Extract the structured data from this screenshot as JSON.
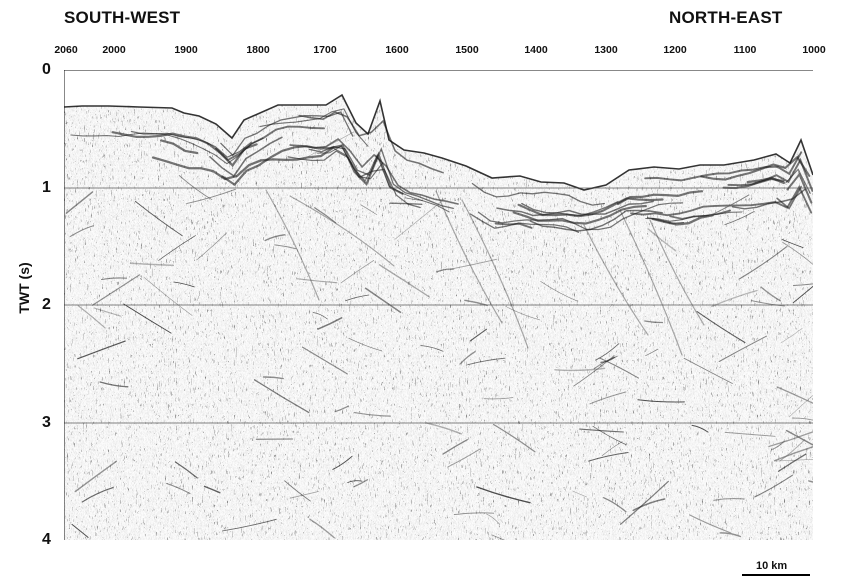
{
  "title": {
    "left_direction": "SOUTH-WEST",
    "right_direction": "NORTH-EAST"
  },
  "top_axis": {
    "labels": [
      "2060",
      "2000",
      "1900",
      "1800",
      "1700",
      "1600",
      "1500",
      "1400",
      "1300",
      "1200",
      "1100",
      "1000"
    ]
  },
  "left_axis": {
    "title": "TWT (s)",
    "labels": [
      "0",
      "1",
      "2",
      "3",
      "4"
    ]
  },
  "scale_bar": {
    "label": "10 km"
  },
  "colors": {
    "ink": "#111111",
    "trace_dark": "#1a1a1a",
    "trace_mid": "#5c5c5c",
    "trace_light": "#9a9a9a",
    "background": "#ffffff"
  }
}
